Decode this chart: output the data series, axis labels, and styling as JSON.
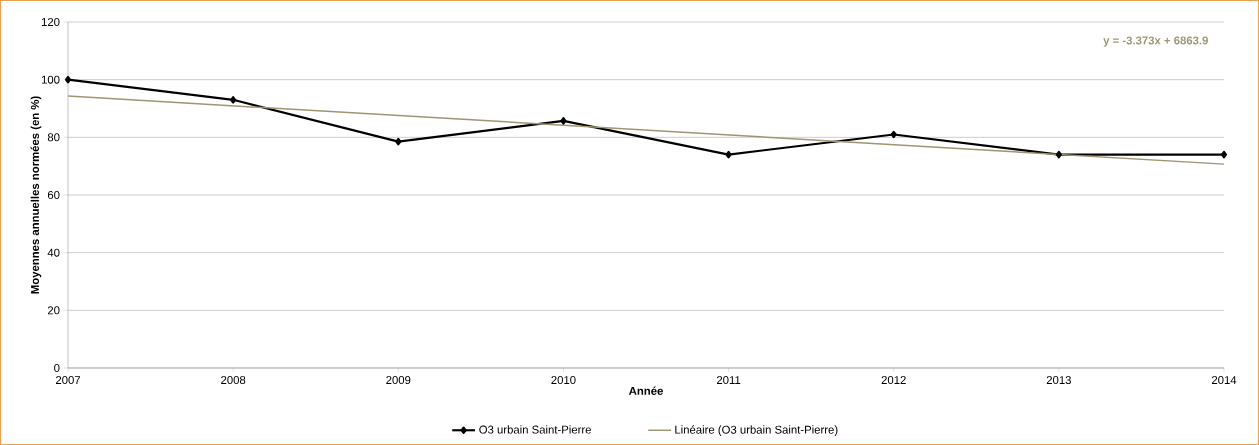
{
  "chart_data": {
    "type": "line",
    "xlabel": "Année",
    "ylabel": "Moyennes annuelles normées (en %)",
    "x": [
      2007,
      2008,
      2009,
      2010,
      2011,
      2012,
      2013,
      2014
    ],
    "xlim": [
      2007,
      2014
    ],
    "xticks": [
      2007,
      2008,
      2009,
      2010,
      2011,
      2012,
      2013,
      2014
    ],
    "ylim": [
      0,
      120
    ],
    "yticks": [
      0,
      20,
      40,
      60,
      80,
      100,
      120
    ],
    "grid": "y",
    "legend": "bottom",
    "annotations": [
      "y = -3.373x + 6863.9"
    ],
    "series": [
      {
        "name": "O3 urbain Saint-Pierre",
        "color": "#000000",
        "marker": "diamond",
        "line_style": "solid",
        "values": [
          100,
          93,
          78.5,
          85.7,
          74,
          81,
          74,
          74
        ]
      },
      {
        "name": "Linéaire (O3 urbain Saint-Pierre)",
        "color": "#9e9572",
        "marker": "none",
        "line_style": "solid",
        "x": [
          2007,
          2014
        ],
        "values": [
          94.3,
          70.7
        ]
      }
    ]
  }
}
